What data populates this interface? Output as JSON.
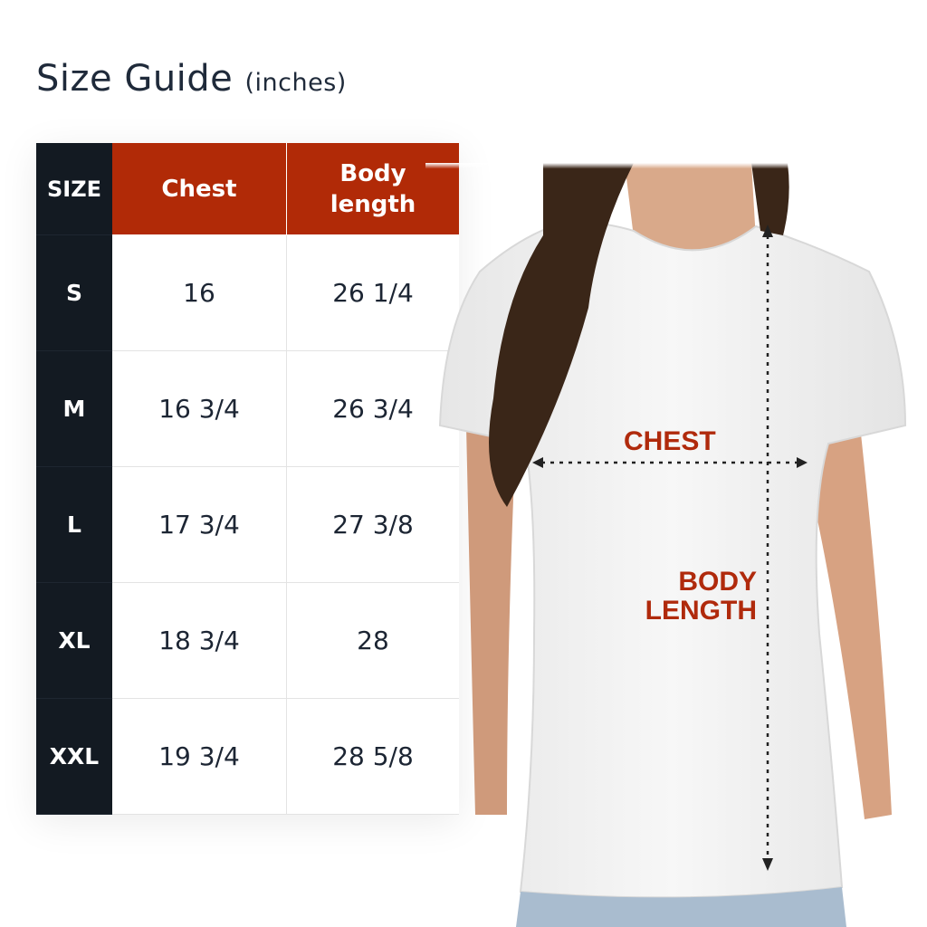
{
  "title": {
    "main": "Size Guide",
    "unit": "(inches)"
  },
  "table": {
    "headers": [
      "SIZE",
      "Chest",
      "Body length"
    ],
    "rows": [
      {
        "size": "S",
        "chest": "16",
        "length": "26 1/4"
      },
      {
        "size": "M",
        "chest": "16 3/4",
        "length": "26 3/4"
      },
      {
        "size": "L",
        "chest": "17 3/4",
        "length": "27 3/8"
      },
      {
        "size": "XL",
        "chest": "18 3/4",
        "length": "28"
      },
      {
        "size": "XXL",
        "chest": "19 3/4",
        "length": "28 5/8"
      }
    ]
  },
  "diagram": {
    "chest_label": "CHEST",
    "length_label_1": "BODY",
    "length_label_2": "LENGTH"
  },
  "colors": {
    "header": "#b12a07",
    "size_col": "#131a22",
    "label": "#b02a0c"
  }
}
